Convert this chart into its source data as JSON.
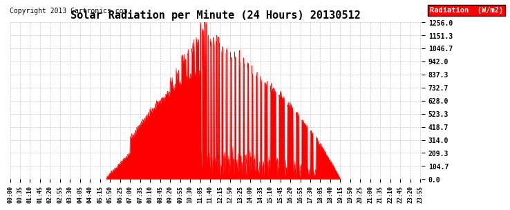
{
  "title": "Solar Radiation per Minute (24 Hours) 20130512",
  "copyright": "Copyright 2013 Cartronics.com",
  "legend_label": "Radiation  (W/m2)",
  "yticks": [
    0.0,
    104.7,
    209.3,
    314.0,
    418.7,
    523.3,
    628.0,
    732.7,
    837.3,
    942.0,
    1046.7,
    1151.3,
    1256.0
  ],
  "ymax": 1256.0,
  "ymin": 0.0,
  "fill_color": "#FF0000",
  "line_color": "#FF0000",
  "dashed_line_color": "#FF0000",
  "background_color": "#FFFFFF",
  "grid_color": "#BBBBBB",
  "title_fontsize": 11,
  "copyright_fontsize": 7,
  "legend_bg": "#FF0000",
  "legend_text_color": "#FFFFFF",
  "sunrise_min": 335,
  "sunset_min": 1155,
  "peak_max": 1256.0,
  "xtick_step": 35
}
